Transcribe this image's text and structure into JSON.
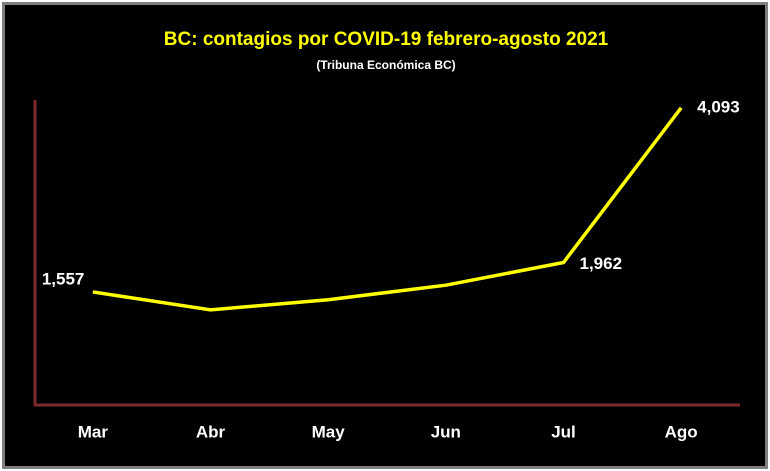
{
  "chart_data": {
    "type": "line",
    "title": "BC: contagios por COVID-19 febrero-agosto 2021",
    "subtitle": "(Tribuna Económica BC)",
    "categories": [
      "Mar",
      "Abr",
      "May",
      "Jun",
      "Jul",
      "Ago"
    ],
    "values": [
      1557,
      1310,
      1450,
      1650,
      1962,
      4093
    ],
    "value_labels": [
      "1,557",
      null,
      null,
      null,
      "1,962",
      "4,093"
    ],
    "color": "#ffff00",
    "ylim": [
      0,
      4200
    ]
  }
}
